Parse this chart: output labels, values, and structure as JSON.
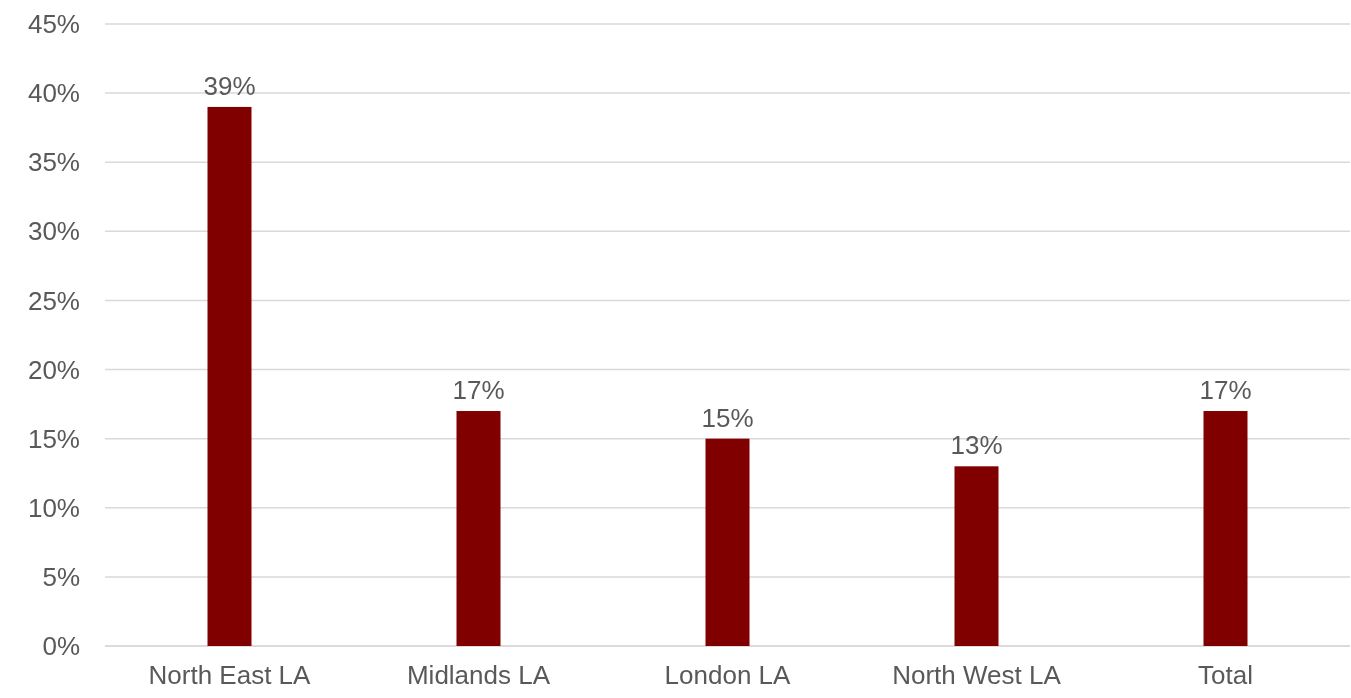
{
  "chart_data": {
    "type": "bar",
    "categories": [
      "North East LA",
      "Midlands LA",
      "London LA",
      "North West LA",
      "Total"
    ],
    "values": [
      39,
      17,
      15,
      13,
      17
    ],
    "color": "#800000",
    "value_labels": [
      "39%",
      "17%",
      "15%",
      "13%",
      "17%"
    ],
    "ylim": [
      0,
      45
    ],
    "yticks": [
      {
        "value": 0,
        "label": "0%"
      },
      {
        "value": 5,
        "label": "5%"
      },
      {
        "value": 10,
        "label": "10%"
      },
      {
        "value": 15,
        "label": "15%"
      },
      {
        "value": 20,
        "label": "20%"
      },
      {
        "value": 25,
        "label": "25%"
      },
      {
        "value": 30,
        "label": "30%"
      },
      {
        "value": 35,
        "label": "35%"
      },
      {
        "value": 40,
        "label": "40%"
      },
      {
        "value": 45,
        "label": "45%"
      }
    ],
    "grid": "y"
  }
}
